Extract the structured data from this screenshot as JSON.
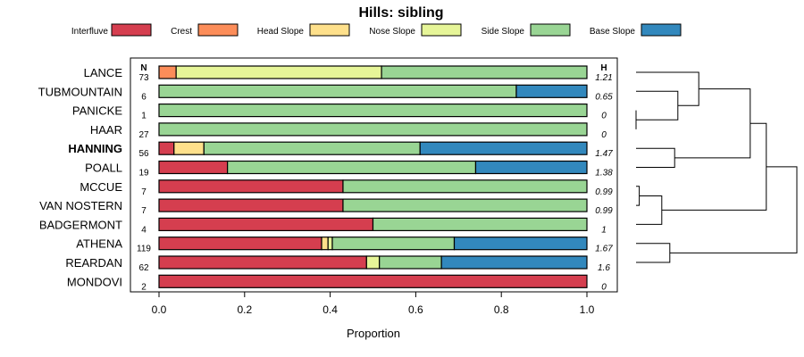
{
  "chart_data": {
    "type": "bar",
    "orientation": "horizontal",
    "stacked": true,
    "title": "Hills: sibling",
    "xlabel": "Proportion",
    "xlim": [
      0,
      1
    ],
    "x_ticks": [
      "0.0",
      "0.2",
      "0.4",
      "0.6",
      "0.8",
      "1.0"
    ],
    "n_header": "N",
    "h_header": "H",
    "legend_position": "top",
    "categories": [
      "LANCE",
      "TUBMOUNTAIN",
      "PANICKE",
      "HAAR",
      "HANNING",
      "POALL",
      "MCCUE",
      "VAN NOSTERN",
      "BADGERMONT",
      "ATHENA",
      "REARDAN",
      "MONDOVI"
    ],
    "highlight": "HANNING",
    "n": [
      "73",
      "6",
      "1",
      "27",
      "56",
      "19",
      "7",
      "7",
      "4",
      "119",
      "62",
      "2"
    ],
    "h": [
      "1.21",
      "0.65",
      "0",
      "0",
      "1.47",
      "1.38",
      "0.99",
      "0.99",
      "1",
      "1.67",
      "1.6",
      "0"
    ],
    "series": [
      {
        "name": "Interfluve",
        "color": "#D53E4F",
        "values": [
          0,
          0,
          0,
          0,
          0.035,
          0.16,
          0.43,
          0.43,
          0.5,
          0.38,
          0.485,
          1.0
        ]
      },
      {
        "name": "Crest",
        "color": "#FC8D59",
        "values": [
          0.04,
          0,
          0,
          0,
          0,
          0,
          0,
          0,
          0,
          0,
          0,
          0
        ]
      },
      {
        "name": "Head Slope",
        "color": "#FEE08B",
        "values": [
          0,
          0,
          0,
          0,
          0.07,
          0,
          0,
          0,
          0,
          0.015,
          0,
          0
        ]
      },
      {
        "name": "Nose Slope",
        "color": "#E6F598",
        "values": [
          0.48,
          0,
          0,
          0,
          0,
          0,
          0,
          0,
          0,
          0.01,
          0.03,
          0
        ]
      },
      {
        "name": "Side Slope",
        "color": "#99D594",
        "values": [
          0.48,
          0.835,
          1.0,
          1.0,
          0.505,
          0.58,
          0.57,
          0.57,
          0.5,
          0.285,
          0.145,
          0
        ]
      },
      {
        "name": "Base Slope",
        "color": "#3288BD",
        "values": [
          0,
          0.165,
          0,
          0,
          0.39,
          0.26,
          0,
          0,
          0,
          0.31,
          0.34,
          0
        ]
      }
    ],
    "dendrogram": {
      "type": "hierarchical-clustering",
      "merges": [
        [
          "PANICKE",
          "HAAR",
          0.0
        ],
        [
          "VAN NOSTERN",
          "MCCUE",
          0.02
        ],
        [
          "BADGERMONT",
          "MCCUE+VAN NOSTERN",
          0.16
        ],
        [
          "HANNING",
          "POALL",
          0.24
        ],
        [
          "TUBMOUNTAIN",
          "PANICKE+HAAR",
          0.26
        ],
        [
          "ATHENA",
          "REARDAN",
          0.21
        ],
        [
          "LANCE",
          "TUBMOUNTAIN+PANICKE+HAAR",
          0.39
        ],
        [
          "LANCE-group",
          "HANNING+POALL",
          0.71
        ],
        [
          "LANCE-group",
          "BADGERMONT-group",
          0.81
        ],
        [
          "ALL-upper",
          "ATHENA+REARDAN",
          1.0
        ]
      ]
    }
  }
}
